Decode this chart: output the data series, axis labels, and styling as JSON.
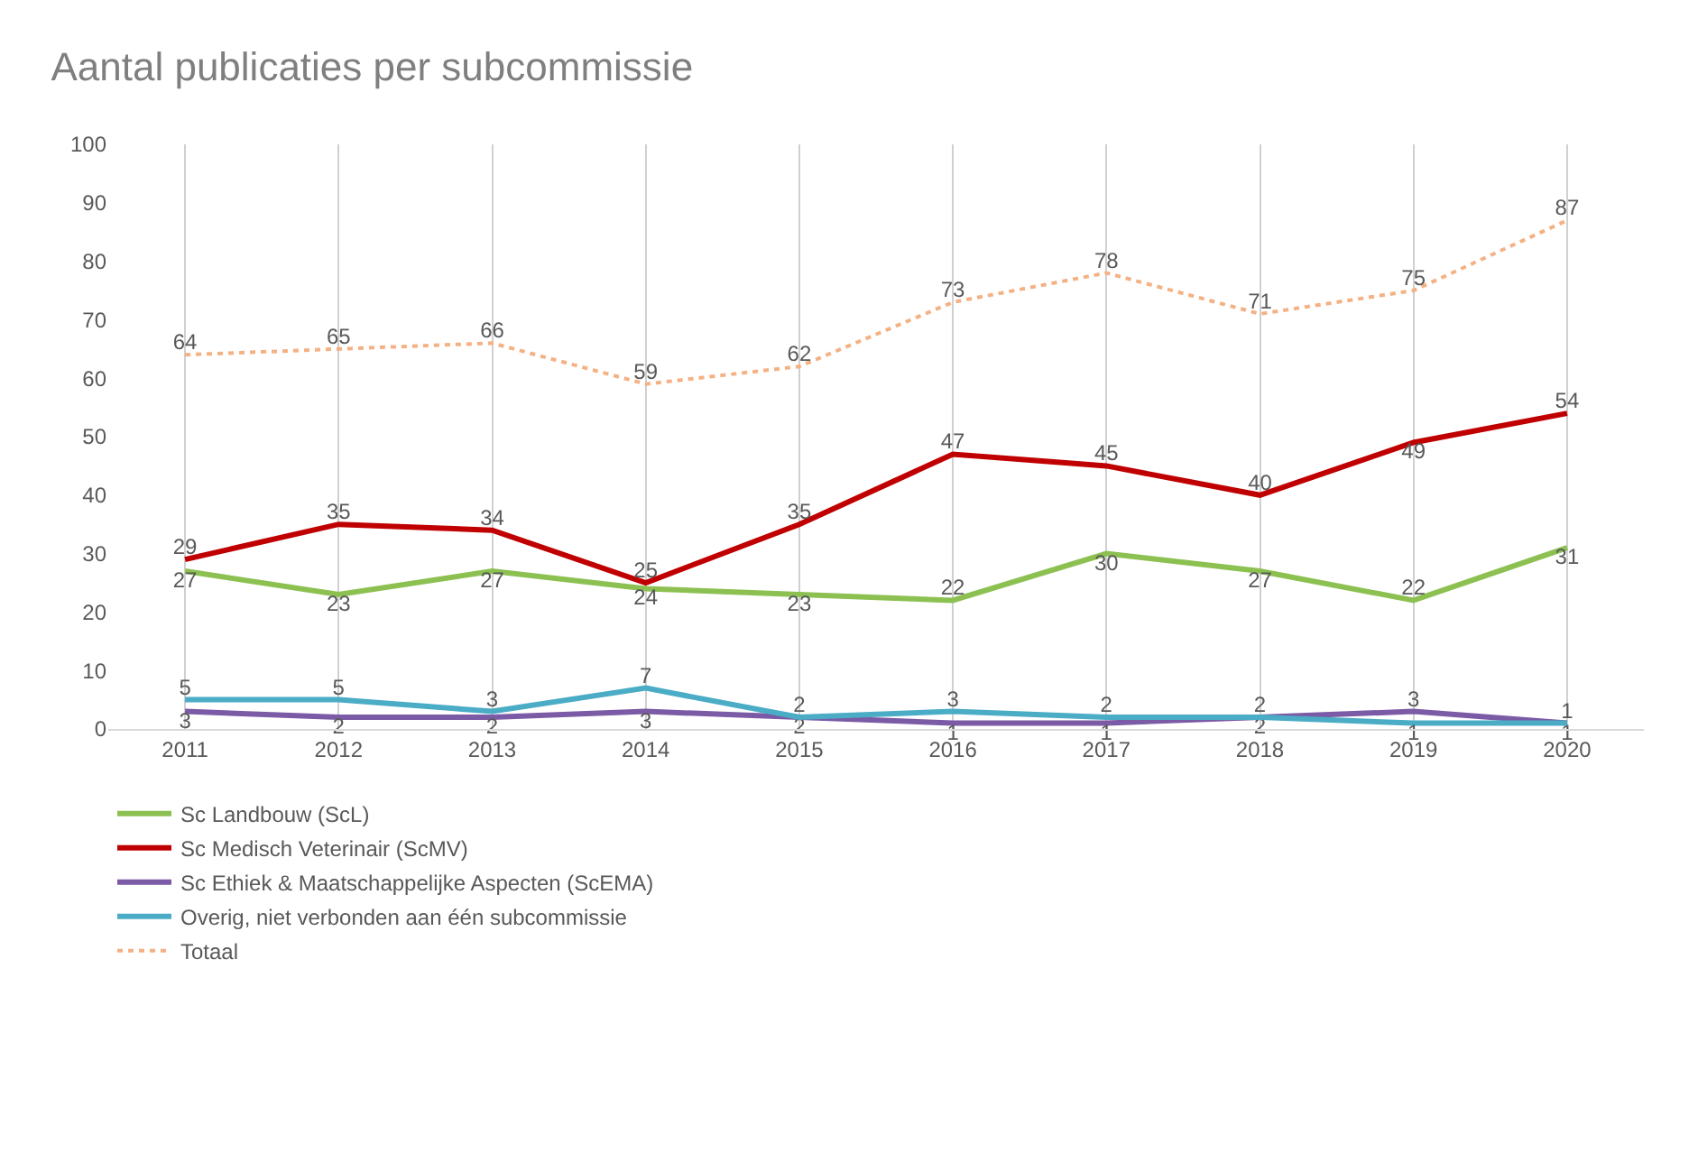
{
  "chart_data": {
    "type": "line",
    "title": "Aantal publicaties per subcommissie",
    "categories": [
      "2011",
      "2012",
      "2013",
      "2014",
      "2015",
      "2016",
      "2017",
      "2018",
      "2019",
      "2020"
    ],
    "series": [
      {
        "name": "Sc Landbouw (ScL)",
        "color": "#8cc152",
        "values": [
          27,
          23,
          27,
          24,
          23,
          22,
          30,
          27,
          22,
          31
        ]
      },
      {
        "name": "Sc Medisch Veterinair (ScMV)",
        "color": "#c00000",
        "values": [
          29,
          35,
          34,
          25,
          35,
          47,
          45,
          40,
          49,
          54
        ]
      },
      {
        "name": "Sc Ethiek & Maatschappelijke Aspecten (ScEMA)",
        "color": "#7b5aa6",
        "values": [
          3,
          2,
          2,
          3,
          2,
          1,
          1,
          2,
          3,
          1
        ]
      },
      {
        "name": "Overig, niet verbonden aan één subcommissie",
        "color": "#4bacc6",
        "values": [
          5,
          5,
          3,
          7,
          2,
          3,
          2,
          2,
          1,
          1
        ]
      },
      {
        "name": "Totaal",
        "color": "#f4b183",
        "line_style": "dotted",
        "values": [
          64,
          65,
          66,
          59,
          62,
          73,
          78,
          71,
          75,
          87
        ]
      }
    ],
    "ylim": [
      0,
      100
    ],
    "yticks": [
      0,
      10,
      20,
      30,
      40,
      50,
      60,
      70,
      80,
      90,
      100
    ],
    "grid": "x",
    "legend": "bottom",
    "marker": "none",
    "line_style": "solid",
    "data_labels": true
  }
}
